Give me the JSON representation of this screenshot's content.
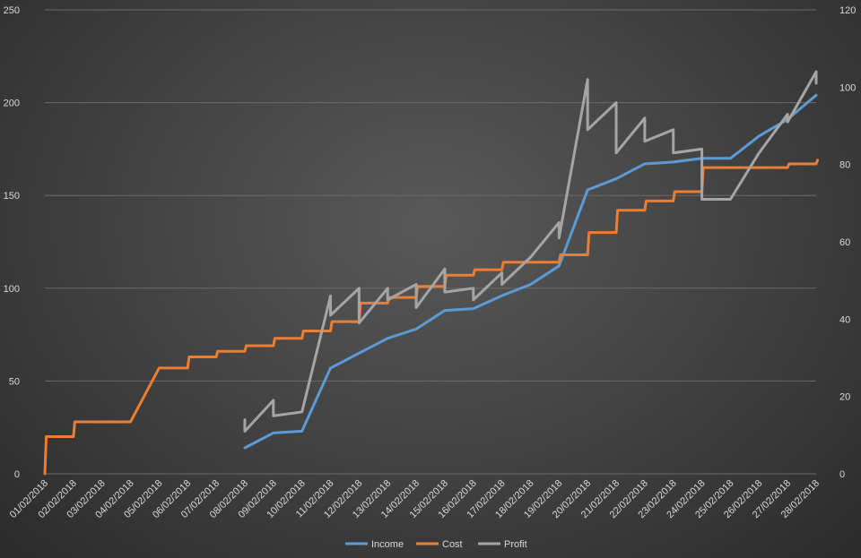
{
  "chart_data": {
    "type": "line",
    "categories": [
      "01/02/2018",
      "02/02/2018",
      "03/02/2018",
      "04/02/2018",
      "05/02/2018",
      "06/02/2018",
      "07/02/2018",
      "08/02/2018",
      "09/02/2018",
      "10/02/2018",
      "11/02/2018",
      "12/02/2018",
      "13/02/2018",
      "14/02/2018",
      "15/02/2018",
      "16/02/2018",
      "17/02/2018",
      "18/02/2018",
      "19/02/2018",
      "20/02/2018",
      "21/02/2018",
      "22/02/2018",
      "23/02/2018",
      "24/02/2018",
      "25/02/2018",
      "26/02/2018",
      "27/02/2018",
      "28/02/2018"
    ],
    "y_left": {
      "min": 0,
      "max": 250,
      "ticks": [
        "0",
        "50",
        "100",
        "150",
        "200",
        "250"
      ]
    },
    "y_right": {
      "min": 0,
      "max": 120,
      "ticks": [
        "0",
        "20",
        "40",
        "60",
        "80",
        "100",
        "120"
      ]
    },
    "grid": "horizontal",
    "legend_position": "bottom",
    "series": [
      {
        "name": "Income",
        "axis": "left",
        "color": "#5b9bd5",
        "points": [
          [
            7.0,
            14
          ],
          [
            8.0,
            22
          ],
          [
            9.0,
            23
          ],
          [
            10.0,
            57
          ],
          [
            11.0,
            65
          ],
          [
            12.0,
            73
          ],
          [
            13.0,
            78
          ],
          [
            14.0,
            88
          ],
          [
            15.0,
            89
          ],
          [
            16.0,
            96
          ],
          [
            17.0,
            102
          ],
          [
            18.0,
            112
          ],
          [
            19.0,
            153
          ],
          [
            20.0,
            159
          ],
          [
            21.0,
            167
          ],
          [
            22.0,
            168
          ],
          [
            23.0,
            170
          ],
          [
            24.0,
            170
          ],
          [
            25.0,
            182
          ],
          [
            26.0,
            191
          ],
          [
            27.0,
            204
          ]
        ]
      },
      {
        "name": "Cost",
        "axis": "left",
        "color": "#ed7d31",
        "points": [
          [
            0.0,
            0
          ],
          [
            0.05,
            20
          ],
          [
            1.0,
            20
          ],
          [
            1.05,
            28
          ],
          [
            3.0,
            28
          ],
          [
            4.0,
            57
          ],
          [
            5.0,
            57
          ],
          [
            5.05,
            63
          ],
          [
            6.0,
            63
          ],
          [
            6.05,
            66
          ],
          [
            7.0,
            66
          ],
          [
            7.05,
            69
          ],
          [
            8.0,
            69
          ],
          [
            8.05,
            73
          ],
          [
            9.0,
            73
          ],
          [
            9.05,
            77
          ],
          [
            10.0,
            77
          ],
          [
            10.05,
            82
          ],
          [
            11.0,
            82
          ],
          [
            11.05,
            92
          ],
          [
            12.0,
            92
          ],
          [
            12.05,
            95
          ],
          [
            13.0,
            95
          ],
          [
            13.05,
            101
          ],
          [
            14.0,
            101
          ],
          [
            14.05,
            107
          ],
          [
            15.0,
            107
          ],
          [
            15.05,
            110
          ],
          [
            16.0,
            110
          ],
          [
            16.05,
            114
          ],
          [
            17.0,
            114
          ],
          [
            18.0,
            114
          ],
          [
            18.05,
            118
          ],
          [
            19.0,
            118
          ],
          [
            19.05,
            130
          ],
          [
            20.0,
            130
          ],
          [
            20.05,
            142
          ],
          [
            21.0,
            142
          ],
          [
            21.05,
            147
          ],
          [
            22.0,
            147
          ],
          [
            22.05,
            152
          ],
          [
            23.0,
            152
          ],
          [
            23.05,
            165
          ],
          [
            26.0,
            165
          ],
          [
            26.05,
            167
          ],
          [
            27.0,
            167
          ],
          [
            27.05,
            169
          ]
        ]
      },
      {
        "name": "Profit",
        "axis": "right",
        "color": "#a5a5a5",
        "points": [
          [
            7.0,
            14
          ],
          [
            7.0,
            11
          ],
          [
            8.0,
            19
          ],
          [
            8.0,
            15
          ],
          [
            9.0,
            16
          ],
          [
            10.0,
            46
          ],
          [
            10.0,
            41
          ],
          [
            11.0,
            48
          ],
          [
            11.0,
            39
          ],
          [
            12.0,
            48
          ],
          [
            12.0,
            45
          ],
          [
            13.0,
            49
          ],
          [
            13.0,
            43
          ],
          [
            14.0,
            53
          ],
          [
            14.0,
            47
          ],
          [
            15.0,
            48
          ],
          [
            15.0,
            45
          ],
          [
            16.0,
            52
          ],
          [
            16.0,
            49
          ],
          [
            17.0,
            56
          ],
          [
            18.0,
            65
          ],
          [
            18.0,
            61
          ],
          [
            19.0,
            102
          ],
          [
            19.0,
            89
          ],
          [
            20.0,
            96
          ],
          [
            20.0,
            83
          ],
          [
            21.0,
            92
          ],
          [
            21.0,
            86
          ],
          [
            22.0,
            89
          ],
          [
            22.0,
            83
          ],
          [
            23.0,
            84
          ],
          [
            23.0,
            71
          ],
          [
            24.0,
            71
          ],
          [
            25.0,
            83
          ],
          [
            26.0,
            93
          ],
          [
            26.0,
            91
          ],
          [
            27.0,
            104
          ],
          [
            27.0,
            101
          ]
        ]
      }
    ]
  }
}
